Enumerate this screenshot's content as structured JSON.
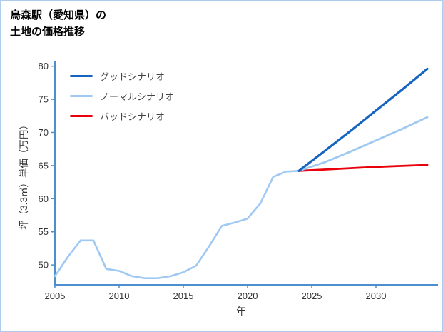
{
  "title": {
    "line1": "烏森駅（愛知県）の",
    "line2": "土地の価格推移"
  },
  "chart_data": {
    "type": "line",
    "title": "烏森駅（愛知県）の土地の価格推移",
    "xlabel": "年",
    "ylabel": "坪（3.3㎡）単価（万円）",
    "x_ticks": [
      2005,
      2010,
      2015,
      2020,
      2025,
      2030
    ],
    "y_ticks": [
      50,
      55,
      60,
      65,
      70,
      75,
      80
    ],
    "xlim": [
      2005,
      2034
    ],
    "ylim": [
      47,
      80.5
    ],
    "grid": false,
    "legend_position": "upper-left",
    "axis_color": "#4d8fcc",
    "history": {
      "name": "",
      "color": "#9fc9f2",
      "x": [
        2005,
        2006,
        2007,
        2008,
        2009,
        2010,
        2011,
        2012,
        2013,
        2014,
        2015,
        2016,
        2017,
        2018,
        2019,
        2020,
        2021,
        2022,
        2023,
        2024
      ],
      "values": [
        48.3,
        51.2,
        53.7,
        53.7,
        49.4,
        49.1,
        48.3,
        48.0,
        48.0,
        48.3,
        48.9,
        49.9,
        52.8,
        55.9,
        56.4,
        57.0,
        59.3,
        63.3,
        64.1,
        64.2
      ]
    },
    "series": [
      {
        "name": "グッドシナリオ",
        "color": "#1565c0",
        "x": [
          2024,
          2026,
          2028,
          2030,
          2032,
          2034
        ],
        "values": [
          64.2,
          67.2,
          70.2,
          73.3,
          76.4,
          79.6
        ]
      },
      {
        "name": "ノーマルシナリオ",
        "color": "#9fc9f2",
        "x": [
          2024,
          2026,
          2028,
          2030,
          2032,
          2034
        ],
        "values": [
          64.2,
          65.5,
          67.1,
          68.8,
          70.5,
          72.3
        ]
      },
      {
        "name": "バッドシナリオ",
        "color": "#e8000d",
        "x": [
          2024,
          2026,
          2028,
          2030,
          2032,
          2034
        ],
        "values": [
          64.2,
          64.4,
          64.6,
          64.8,
          64.95,
          65.1
        ]
      }
    ]
  }
}
